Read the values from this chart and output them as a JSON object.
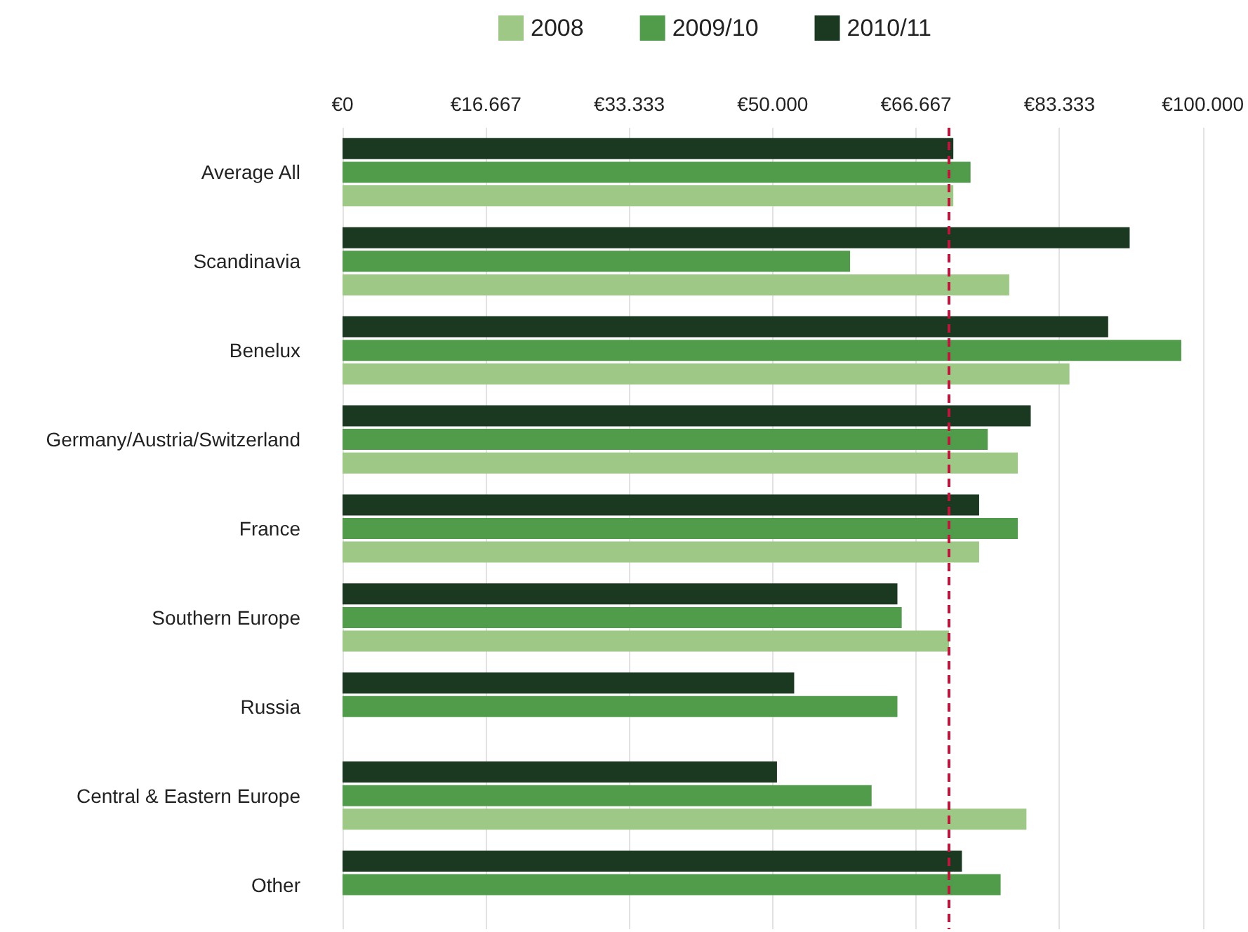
{
  "chart_data": {
    "type": "bar",
    "orientation": "horizontal",
    "categories": [
      "Average All",
      "Scandinavia",
      "Benelux",
      "Germany/Austria/Switzerland",
      "France",
      "Southern Europe",
      "Russia",
      "Central & Eastern Europe",
      "Other"
    ],
    "series": [
      {
        "name": "2008",
        "color": "#9dc886",
        "values": [
          71000,
          77500,
          84500,
          78500,
          74000,
          70500,
          null,
          79500,
          null
        ]
      },
      {
        "name": "2009/10",
        "color": "#519c4a",
        "values": [
          73000,
          59000,
          97500,
          75000,
          78500,
          65000,
          64500,
          61500,
          76500
        ]
      },
      {
        "name": "2010/11",
        "color": "#1b3820",
        "values": [
          71000,
          91500,
          89000,
          80000,
          74000,
          64500,
          52500,
          50500,
          72000
        ]
      }
    ],
    "xlim": [
      0,
      100000
    ],
    "xticks": [
      {
        "value": 0,
        "label": "€0"
      },
      {
        "value": 16667,
        "label": "€16.667"
      },
      {
        "value": 33333,
        "label": "€33.333"
      },
      {
        "value": 50000,
        "label": "€50.000"
      },
      {
        "value": 66667,
        "label": "€66.667"
      },
      {
        "value": 83333,
        "label": "€83.333"
      },
      {
        "value": 100000,
        "label": "€100.000"
      }
    ],
    "grid": "x",
    "legend": "top",
    "ref_lines": [
      {
        "axis": "x",
        "value": 70500,
        "color": "#c0143c",
        "line_style": "dashed"
      }
    ]
  }
}
